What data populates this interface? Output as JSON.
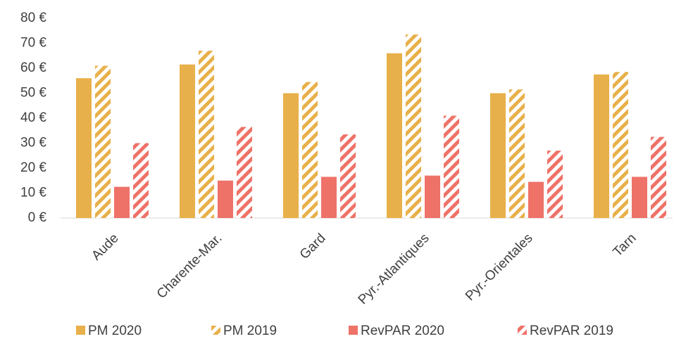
{
  "chart_data": {
    "type": "bar",
    "categories": [
      "Aude",
      "Charente-Mar.",
      "Gard",
      "Pyr.-Atlantiques",
      "Pyr.-Orientales",
      "Tarn"
    ],
    "series": [
      {
        "name": "PM 2020",
        "color": "#E8B04A",
        "hatch": false,
        "values": [
          56,
          61.5,
          50,
          66,
          50,
          57.5
        ]
      },
      {
        "name": "PM 2019",
        "color": "#E8B04A",
        "hatch": true,
        "values": [
          61,
          67,
          54.5,
          73.5,
          51.5,
          58.5
        ]
      },
      {
        "name": "RevPAR 2020",
        "color": "#EE7268",
        "hatch": false,
        "values": [
          12.5,
          15,
          16.5,
          17,
          14.5,
          16.5
        ]
      },
      {
        "name": "RevPAR 2019",
        "color": "#EE7268",
        "hatch": true,
        "values": [
          30,
          36.5,
          33.5,
          41,
          27,
          32.5
        ]
      }
    ],
    "ylim": [
      0,
      80
    ],
    "yticks": [
      {
        "value": 0,
        "label": "0 €"
      },
      {
        "value": 10,
        "label": "10 €"
      },
      {
        "value": 20,
        "label": "20 €"
      },
      {
        "value": 30,
        "label": "30 €"
      },
      {
        "value": 40,
        "label": "40 €"
      },
      {
        "value": 50,
        "label": "50 €"
      },
      {
        "value": 60,
        "label": "60 €"
      },
      {
        "value": 70,
        "label": "70 €"
      },
      {
        "value": 80,
        "label": "80 €"
      }
    ],
    "grid": false,
    "legend": "bottom"
  }
}
